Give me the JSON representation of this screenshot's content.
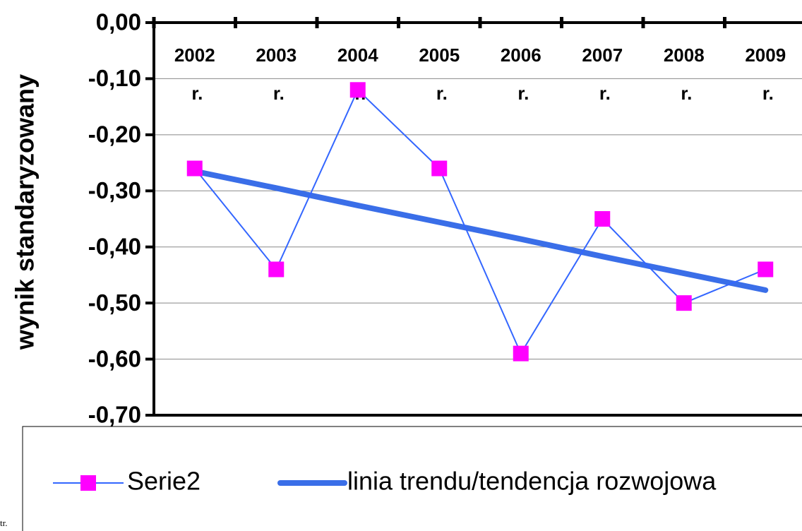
{
  "chart_data": {
    "type": "line",
    "ylabel": "wynik standaryzowany",
    "categories": [
      "2002 r.",
      "2003 r.",
      "2004 r.",
      "2005 r.",
      "2006 r.",
      "2007 r.",
      "2008 r.",
      "2009 r."
    ],
    "series": [
      {
        "name": "Serie2",
        "color": "#3366ff",
        "marker_color": "#ff00ff",
        "values": [
          -0.26,
          -0.44,
          -0.12,
          -0.26,
          -0.59,
          -0.35,
          -0.5,
          -0.44
        ]
      },
      {
        "name": "linia trendu/tendencja rozwojowa",
        "color": "#3a6ee8",
        "values": [
          -0.265,
          -0.295,
          -0.326,
          -0.356,
          -0.386,
          -0.417,
          -0.447,
          -0.477
        ]
      }
    ],
    "ylim": [
      -0.7,
      0
    ],
    "yticks": [
      {
        "value": 0,
        "label": "0,00"
      },
      {
        "value": -0.1,
        "label": "-0,10"
      },
      {
        "value": -0.2,
        "label": "-0,20"
      },
      {
        "value": -0.3,
        "label": "-0,30"
      },
      {
        "value": -0.4,
        "label": "-0,40"
      },
      {
        "value": -0.5,
        "label": "-0,50"
      },
      {
        "value": -0.6,
        "label": "-0,60"
      },
      {
        "value": -0.7,
        "label": "-0,70"
      }
    ],
    "grid": true,
    "legend": "bottom",
    "annotation": "tr."
  }
}
